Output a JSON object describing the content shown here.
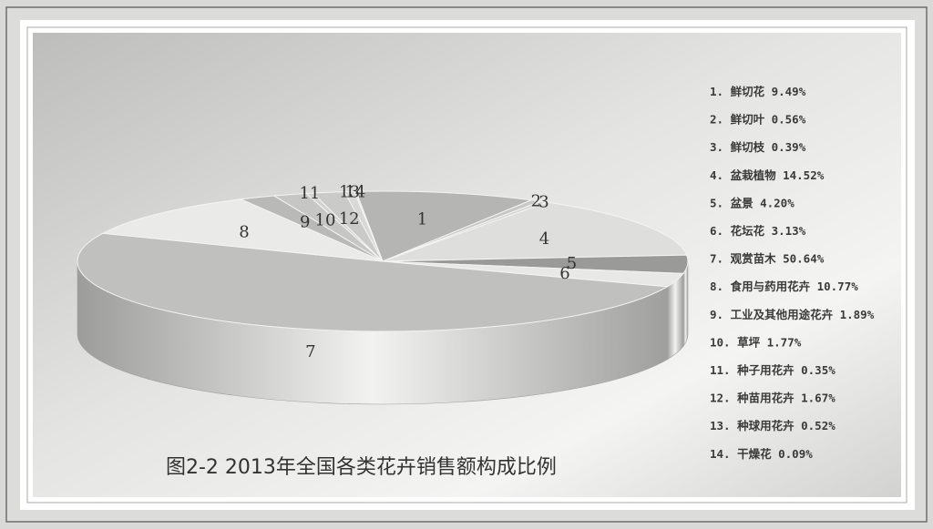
{
  "chart_data": {
    "type": "pie",
    "title": "图2-2 2013年全国各类花卉销售额构成比例",
    "slices": [
      {
        "id": "1",
        "name": "鲜切花",
        "value": 9.49,
        "legend": "1. 鲜切花 9.49%"
      },
      {
        "id": "2",
        "name": "鲜切叶",
        "value": 0.56,
        "legend": "2. 鲜切叶 0.56%"
      },
      {
        "id": "3",
        "name": "鲜切枝",
        "value": 0.39,
        "legend": "3. 鲜切枝 0.39%"
      },
      {
        "id": "4",
        "name": "盆栽植物",
        "value": 14.52,
        "legend": "4. 盆栽植物 14.52%"
      },
      {
        "id": "5",
        "name": "盆景",
        "value": 4.2,
        "legend": "5. 盆景 4.20%"
      },
      {
        "id": "6",
        "name": "花坛花",
        "value": 3.13,
        "legend": "6. 花坛花 3.13%"
      },
      {
        "id": "7",
        "name": "观赏苗木",
        "value": 50.64,
        "legend": "7. 观赏苗木 50.64%"
      },
      {
        "id": "8",
        "name": "食用与药用花卉",
        "value": 10.77,
        "legend": "8. 食用与药用花卉 10.77%"
      },
      {
        "id": "9",
        "name": "工业及其他用途花卉",
        "value": 1.89,
        "legend": "9. 工业及其他用途花卉 1.89%"
      },
      {
        "id": "10",
        "name": "草坪",
        "value": 1.77,
        "legend": "10. 草坪 1.77%"
      },
      {
        "id": "11",
        "name": "种子用花卉",
        "value": 0.35,
        "legend": "11. 种子用花卉 0.35%"
      },
      {
        "id": "12",
        "name": "种苗用花卉",
        "value": 1.67,
        "legend": "12. 种苗用花卉 1.67%"
      },
      {
        "id": "13",
        "name": "种球用花卉",
        "value": 0.52,
        "legend": "13. 种球用花卉 0.52%"
      },
      {
        "id": "14",
        "name": "干燥花",
        "value": 0.09,
        "legend": "14. 干燥花 0.09%"
      }
    ],
    "legend_placement": "right",
    "style": "3d-pie-grayscale"
  }
}
